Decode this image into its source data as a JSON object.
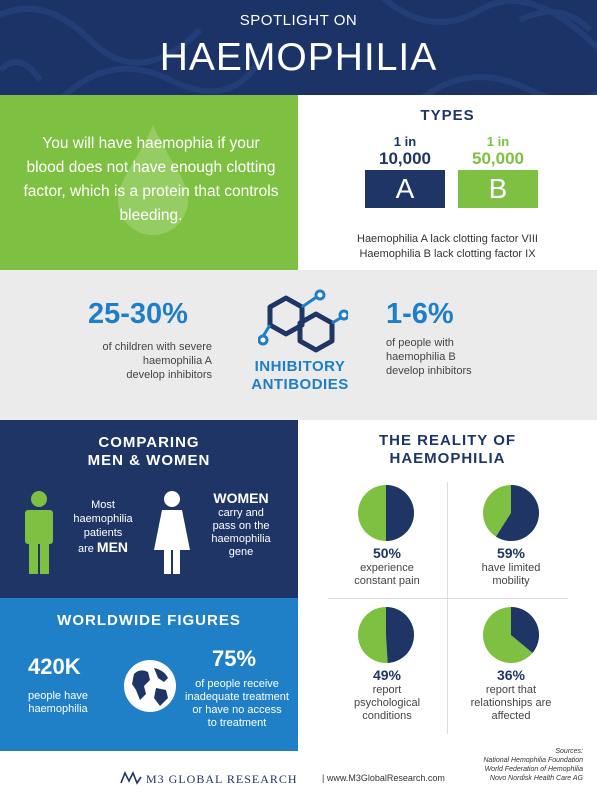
{
  "header": {
    "subtitle": "SPOTLIGHT ON",
    "title": "HAEMOPHILIA"
  },
  "intro": {
    "text": "You will have haemophia if  your blood does not have enough clotting factor, which is a protein that controls bleeding."
  },
  "types": {
    "title": "TYPES",
    "a": {
      "in": "1 in",
      "num": "10,000",
      "letter": "A"
    },
    "b": {
      "in": "1 in",
      "num": "50,000",
      "letter": "B"
    },
    "desc_a": "Haemophilia A lack clotting factor VIII",
    "desc_b": "Haemophilia B lack clotting factor  IX"
  },
  "inhibitors": {
    "left_pct": "25-30%",
    "left_desc": [
      "of children with severe",
      "haemophilia A",
      "develop inhibitors"
    ],
    "label": [
      "INHIBITORY",
      "ANTIBODIES"
    ],
    "right_pct": "1-6%",
    "right_desc": [
      "of people with",
      "haemophilia B",
      "develop inhibitors"
    ]
  },
  "compare": {
    "title": [
      "COMPARING",
      "MEN & WOMEN"
    ],
    "men": {
      "l1": "Most",
      "l2": "haemophilia",
      "l3": "patients",
      "l4a": "are ",
      "l4b": "MEN"
    },
    "women": {
      "head": "WOMEN",
      "l1": "carry and",
      "l2": "pass on the",
      "l3": "haemophilia",
      "l4": "gene"
    }
  },
  "world": {
    "title": "WORLDWIDE FIGURES",
    "left_big": "420K",
    "left_desc": [
      "people have",
      "haemophilia"
    ],
    "right_big": "75%",
    "right_desc": [
      "of people receive",
      "inadequate treatment",
      "or have no access",
      "to treatment"
    ]
  },
  "reality": {
    "title": [
      "THE REALITY OF",
      "HAEMOPHILIA"
    ],
    "items": [
      {
        "pct": "50%",
        "value": 50,
        "desc": [
          "experience",
          "constant pain"
        ]
      },
      {
        "pct": "59%",
        "value": 59,
        "desc": [
          "have limited",
          "mobility"
        ]
      },
      {
        "pct": "49%",
        "value": 49,
        "desc": [
          "report",
          "psychological",
          "conditions"
        ]
      },
      {
        "pct": "36%",
        "value": 36,
        "desc": [
          "report that",
          "relationships are",
          "affected"
        ]
      }
    ]
  },
  "footer": {
    "logo": "M3 GLOBAL RESEARCH",
    "url": "| www.M3GlobalResearch.com",
    "sources": [
      "Sources:",
      "National Hemophilia Foundation",
      "World Federation of Hemophilia",
      "Novo Nordisk Health Care AG"
    ]
  },
  "colors": {
    "navy": "#1e3566",
    "green": "#7ec142",
    "blue": "#1f7fc7",
    "grey": "#ebebeb"
  }
}
